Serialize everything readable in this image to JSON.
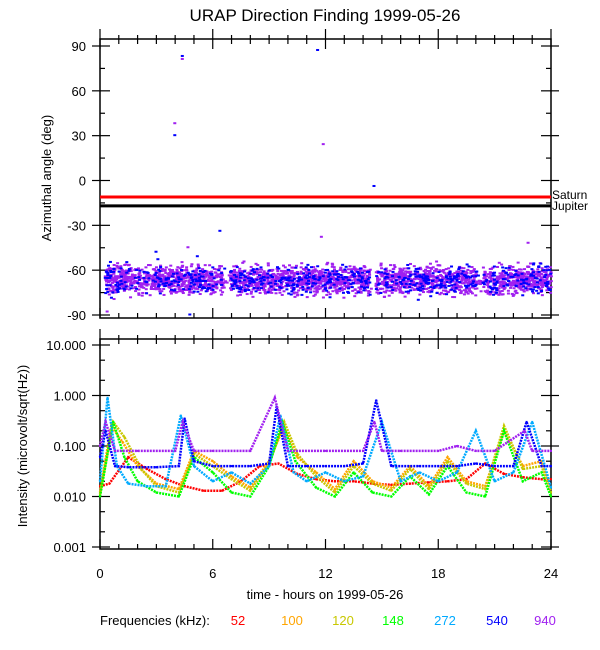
{
  "chart_data": [
    {
      "type": "scatter",
      "title": "URAP Direction Finding  1999-05-26",
      "xlabel": "",
      "ylabel": "Azimuthal angle (deg)",
      "xlim": [
        0,
        24
      ],
      "ylim": [
        -90,
        90
      ],
      "yticks": [
        90,
        60,
        30,
        0,
        -30,
        -60,
        -90
      ],
      "ytick_labels": [
        "90",
        "60",
        "30",
        "0",
        "-30",
        "-60",
        "-90"
      ],
      "grid": false,
      "reference_lines": [
        {
          "name": "Saturn",
          "value": -11,
          "color": "#ff0000"
        },
        {
          "name": "Jupiter",
          "value": -17,
          "color": "#000000"
        }
      ],
      "series": [
        {
          "name": "940 kHz",
          "color": "#a020f0",
          "description": "dense band of points",
          "center": -66,
          "spread": [
            -80,
            -52
          ]
        },
        {
          "name": "540 kHz",
          "color": "#0000ff",
          "description": "sparse points mixed in band",
          "center": -64,
          "spread": [
            -80,
            -52
          ]
        }
      ],
      "outliers": [
        {
          "x": 4.3,
          "y": 84,
          "series": "540 kHz"
        },
        {
          "x": 4.3,
          "y": 82,
          "series": "940 kHz"
        },
        {
          "x": 3.9,
          "y": 39,
          "series": "940 kHz"
        },
        {
          "x": 3.9,
          "y": 31,
          "series": "540 kHz"
        },
        {
          "x": 11.5,
          "y": 88,
          "series": "540 kHz"
        },
        {
          "x": 11.8,
          "y": 25,
          "series": "940 kHz"
        },
        {
          "x": 14.5,
          "y": -3,
          "series": "540 kHz"
        },
        {
          "x": 4.6,
          "y": -44,
          "series": "940 kHz"
        },
        {
          "x": 6.3,
          "y": -33,
          "series": "540 kHz"
        },
        {
          "x": 11.7,
          "y": -37,
          "series": "940 kHz"
        },
        {
          "x": 22.7,
          "y": -41,
          "series": "940 kHz"
        },
        {
          "x": 5.1,
          "y": -50,
          "series": "540 kHz"
        },
        {
          "x": 3.0,
          "y": -52,
          "series": "540 kHz"
        },
        {
          "x": 2.9,
          "y": -47,
          "series": "540 kHz"
        },
        {
          "x": 0.3,
          "y": -87,
          "series": "940 kHz"
        },
        {
          "x": 4.7,
          "y": -89,
          "series": "540 kHz"
        }
      ]
    },
    {
      "type": "line",
      "xlabel": "time - hours on 1999-05-26",
      "ylabel": "Intensity (microvolt/sqrt(Hz))",
      "xlim": [
        0,
        24
      ],
      "ylim": [
        0.001,
        10
      ],
      "yscale": "log",
      "xticks": [
        0,
        6,
        12,
        18,
        24
      ],
      "xtick_labels": [
        "0",
        "6",
        "12",
        "18",
        "24"
      ],
      "yticks": [
        10,
        1,
        0.1,
        0.01,
        0.001
      ],
      "ytick_labels": [
        "10.000",
        "1.000",
        "0.100",
        "0.010",
        "0.001"
      ],
      "grid": false,
      "legend": {
        "title": "Frequencies (kHz):",
        "placement": "bottom"
      },
      "series": [
        {
          "name": "52",
          "color": "#ff0000",
          "x": [
            0,
            0.5,
            1.5,
            2.5,
            3.5,
            4.5,
            5.5,
            6.5,
            7.5,
            8.5,
            9.5,
            10.5,
            11.5,
            12.5,
            13.5,
            14.5,
            15.5,
            16.5,
            17.5,
            18.5,
            19.5,
            20.5,
            21.5,
            22.5,
            23.5,
            24
          ],
          "values": [
            0.016,
            0.018,
            0.06,
            0.035,
            0.022,
            0.016,
            0.013,
            0.013,
            0.02,
            0.04,
            0.045,
            0.028,
            0.022,
            0.02,
            0.02,
            0.018,
            0.017,
            0.018,
            0.019,
            0.02,
            0.022,
            0.045,
            0.028,
            0.024,
            0.022,
            0.022
          ]
        },
        {
          "name": "100",
          "color": "#ffa500",
          "x": [
            0,
            0.6,
            1.2,
            2,
            3,
            4.2,
            5,
            6,
            7,
            8,
            9,
            9.8,
            10.5,
            11.5,
            12.5,
            13.5,
            14.5,
            15.5,
            16.5,
            17.5,
            18.5,
            19.5,
            20.5,
            21.5,
            22.5,
            23.5,
            24
          ],
          "values": [
            0.012,
            0.25,
            0.12,
            0.04,
            0.018,
            0.014,
            0.08,
            0.05,
            0.025,
            0.015,
            0.05,
            0.25,
            0.06,
            0.03,
            0.014,
            0.05,
            0.02,
            0.015,
            0.04,
            0.016,
            0.06,
            0.02,
            0.016,
            0.2,
            0.04,
            0.05,
            0.012
          ]
        },
        {
          "name": "120",
          "color": "#c8c800",
          "x": [
            0,
            0.7,
            1.3,
            2.2,
            3,
            4.2,
            5,
            6,
            7,
            8,
            9,
            9.8,
            10.5,
            11.5,
            12.5,
            13.5,
            14.5,
            15.5,
            16.5,
            17.5,
            18.5,
            19.5,
            20.5,
            21.5,
            22.5,
            23.5,
            24
          ],
          "values": [
            0.011,
            0.3,
            0.15,
            0.035,
            0.016,
            0.012,
            0.07,
            0.04,
            0.022,
            0.013,
            0.045,
            0.3,
            0.07,
            0.025,
            0.012,
            0.04,
            0.018,
            0.013,
            0.035,
            0.014,
            0.05,
            0.018,
            0.014,
            0.25,
            0.035,
            0.04,
            0.012
          ]
        },
        {
          "name": "148",
          "color": "#00ff00",
          "x": [
            0,
            0.7,
            1.3,
            2,
            3,
            4.2,
            5,
            6,
            7,
            8,
            9,
            9.7,
            10.4,
            11.5,
            12.5,
            13.5,
            14.5,
            15.5,
            16.5,
            17.5,
            18.5,
            19.5,
            20.5,
            21.5,
            22.5,
            23.5,
            24
          ],
          "values": [
            0.01,
            0.3,
            0.06,
            0.02,
            0.012,
            0.01,
            0.06,
            0.03,
            0.012,
            0.01,
            0.04,
            0.3,
            0.05,
            0.015,
            0.01,
            0.03,
            0.012,
            0.01,
            0.025,
            0.011,
            0.04,
            0.012,
            0.01,
            0.2,
            0.02,
            0.03,
            0.01
          ]
        },
        {
          "name": "272",
          "color": "#00aaff",
          "x": [
            0,
            0.4,
            0.9,
            1.5,
            2.5,
            3.5,
            4.3,
            5,
            6,
            7,
            8,
            9,
            9.6,
            10.3,
            11,
            12,
            13,
            14,
            15,
            16,
            17,
            18,
            19,
            20,
            21,
            22,
            23,
            24
          ],
          "values": [
            0.02,
            0.9,
            0.04,
            0.018,
            0.016,
            0.016,
            0.4,
            0.04,
            0.02,
            0.03,
            0.018,
            0.04,
            0.4,
            0.03,
            0.02,
            0.03,
            0.02,
            0.025,
            0.3,
            0.02,
            0.03,
            0.02,
            0.03,
            0.2,
            0.02,
            0.03,
            0.3,
            0.015
          ]
        },
        {
          "name": "540",
          "color": "#0000ff",
          "x": [
            0,
            0.3,
            0.8,
            1.5,
            3,
            4.2,
            4.5,
            5,
            6,
            7,
            8,
            9,
            9.4,
            10,
            11,
            12,
            13,
            14,
            14.7,
            15.5,
            17,
            18,
            19,
            20,
            21,
            22,
            22.7,
            23.5,
            24
          ],
          "values": [
            0.06,
            0.2,
            0.04,
            0.038,
            0.038,
            0.04,
            0.35,
            0.05,
            0.04,
            0.04,
            0.04,
            0.045,
            0.6,
            0.04,
            0.04,
            0.04,
            0.04,
            0.045,
            0.8,
            0.04,
            0.04,
            0.04,
            0.04,
            0.045,
            0.04,
            0.04,
            0.3,
            0.04,
            0.04
          ]
        },
        {
          "name": "940",
          "color": "#a020f0",
          "x": [
            0,
            0.3,
            0.8,
            2,
            4,
            4.4,
            5,
            6,
            8,
            9.3,
            10,
            12,
            14,
            14.6,
            15,
            16,
            18,
            19,
            20,
            21,
            22.6,
            23,
            24
          ],
          "values": [
            0.1,
            0.3,
            0.08,
            0.08,
            0.08,
            0.3,
            0.08,
            0.08,
            0.08,
            0.9,
            0.08,
            0.08,
            0.08,
            0.3,
            0.08,
            0.08,
            0.08,
            0.1,
            0.08,
            0.08,
            0.2,
            0.08,
            0.08
          ]
        }
      ]
    }
  ],
  "title": "URAP Direction Finding  1999-05-26",
  "top_plot": {
    "ylabel": "Azimuthal angle (deg)",
    "ytick_labels": [
      "90",
      "60",
      "30",
      "0",
      "-30",
      "-60",
      "-90"
    ],
    "ref_labels": [
      "Saturn",
      "Jupiter"
    ]
  },
  "bottom_plot": {
    "ylabel": "Intensity (microvolt/sqrt(Hz))",
    "ytick_labels": [
      "10.000",
      "1.000",
      "0.100",
      "0.010",
      "0.001"
    ],
    "xtick_labels": [
      "0",
      "6",
      "12",
      "18",
      "24"
    ],
    "xlabel": "time - hours on 1999-05-26"
  },
  "legend": {
    "title": "Frequencies (kHz):",
    "items": [
      {
        "label": "52",
        "color": "#ff0000"
      },
      {
        "label": "100",
        "color": "#ffa500"
      },
      {
        "label": "120",
        "color": "#c8c800"
      },
      {
        "label": "148",
        "color": "#00ff00"
      },
      {
        "label": "272",
        "color": "#00aaff"
      },
      {
        "label": "540",
        "color": "#0000ff"
      },
      {
        "label": "940",
        "color": "#a020f0"
      }
    ]
  }
}
